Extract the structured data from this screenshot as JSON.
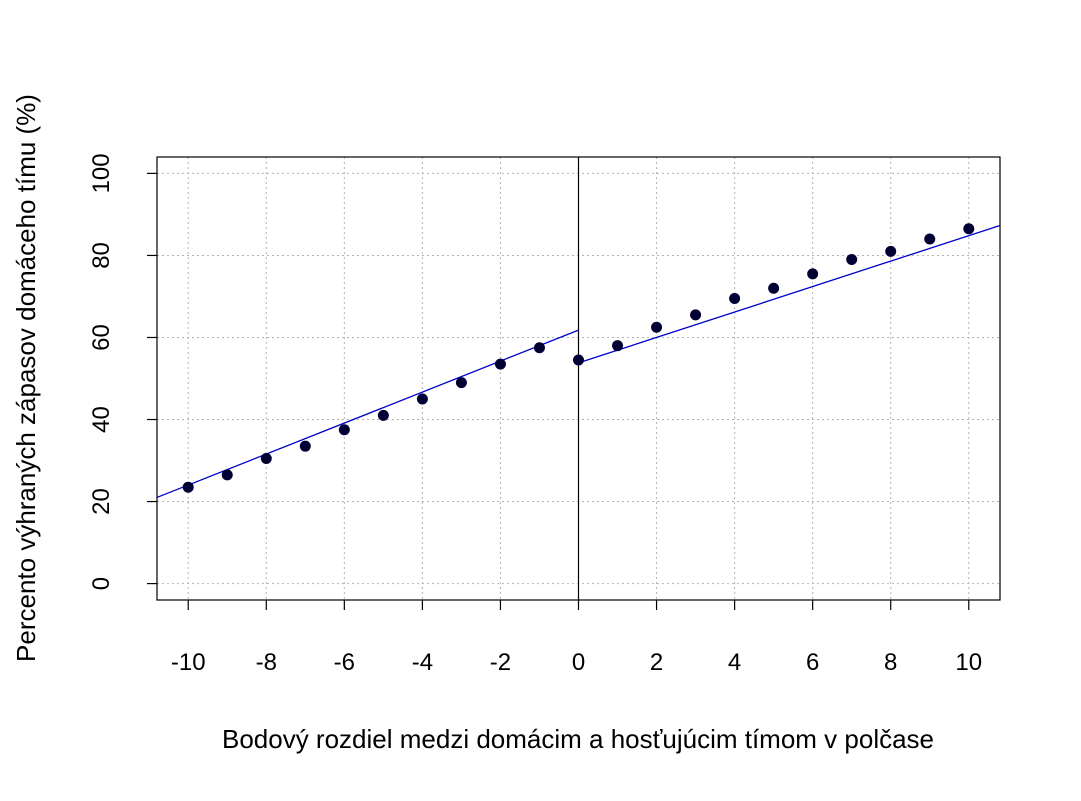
{
  "chart_data": {
    "type": "scatter",
    "title": "",
    "xlabel": "Bodový rozdiel medzi domácim a hosťujúcim tímom v polčase",
    "ylabel": "Percento výhraných zápasov domáceho tímu (%)",
    "xlim": [
      -10.8,
      10.8
    ],
    "ylim": [
      -4,
      104
    ],
    "xticks": [
      -10,
      -8,
      -6,
      -4,
      -2,
      0,
      2,
      4,
      6,
      8,
      10
    ],
    "yticks": [
      0,
      20,
      40,
      60,
      80,
      100
    ],
    "xtick_labels": [
      "-10",
      "-8",
      "-6",
      "-4",
      "-2",
      "0",
      "2",
      "4",
      "6",
      "8",
      "10"
    ],
    "ytick_labels": [
      "0",
      "20",
      "40",
      "60",
      "80",
      "100"
    ],
    "grid": true,
    "vline_at_x": 0,
    "colors": {
      "points": "#000033",
      "fit_line": "#0000cc",
      "grid": "#b3b3b3",
      "axis": "#000000"
    },
    "points": {
      "x": [
        -10,
        -9,
        -8,
        -7,
        -6,
        -5,
        -4,
        -3,
        -2,
        -1,
        0,
        1,
        2,
        3,
        4,
        5,
        6,
        7,
        8,
        9,
        10
      ],
      "y": [
        23.5,
        26.5,
        30.5,
        33.5,
        37.5,
        41.0,
        45.0,
        49.0,
        53.5,
        57.5,
        54.5,
        58.0,
        62.5,
        65.5,
        69.5,
        72.0,
        75.5,
        79.0,
        81.0,
        84.0,
        86.5
      ]
    },
    "fit_segments": [
      {
        "x": [
          -10.8,
          0
        ],
        "y": [
          21.0,
          61.8
        ]
      },
      {
        "x": [
          0,
          10.8
        ],
        "y": [
          53.8,
          87.3
        ]
      }
    ]
  }
}
